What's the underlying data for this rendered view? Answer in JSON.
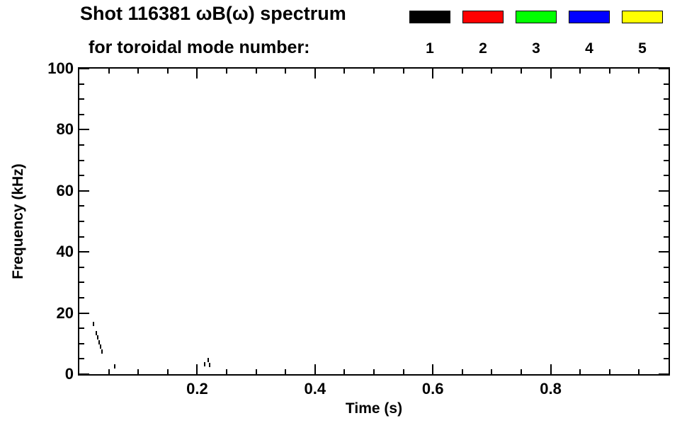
{
  "header": {
    "title": "Shot 116381 ωB(ω) spectrum",
    "subtitle": "for toroidal mode number:"
  },
  "chart_data": {
    "type": "scatter",
    "title": "Shot 116381 ωB(ω) spectrum",
    "subtitle": "for toroidal mode number:",
    "xlabel": "Time (s)",
    "ylabel": "Frequency (kHz)",
    "xlim": [
      0,
      1.0
    ],
    "ylim": [
      0,
      100
    ],
    "grid": false,
    "legend_position": "top-right",
    "x_ticks": [
      {
        "v": 0.2,
        "label": "0.2"
      },
      {
        "v": 0.4,
        "label": "0.4"
      },
      {
        "v": 0.6,
        "label": "0.6"
      },
      {
        "v": 0.8,
        "label": "0.8"
      }
    ],
    "y_ticks": [
      {
        "v": 0,
        "label": "0"
      },
      {
        "v": 20,
        "label": "20"
      },
      {
        "v": 40,
        "label": "40"
      },
      {
        "v": 60,
        "label": "60"
      },
      {
        "v": 80,
        "label": "80"
      },
      {
        "v": 100,
        "label": "100"
      }
    ],
    "x_minor_step": 0.05,
    "y_minor_step": 5,
    "series": [
      {
        "name": "1",
        "color": "#000000",
        "points": [
          [
            0.024,
            16.5
          ],
          [
            0.029,
            13.5
          ],
          [
            0.031,
            12.0
          ],
          [
            0.034,
            10.5
          ],
          [
            0.036,
            9.0
          ],
          [
            0.039,
            7.5
          ],
          [
            0.06,
            2.5
          ],
          [
            0.213,
            3.2
          ],
          [
            0.219,
            4.6
          ],
          [
            0.221,
            2.9
          ]
        ]
      },
      {
        "name": "2",
        "color": "#ff0000",
        "points": []
      },
      {
        "name": "3",
        "color": "#00ff00",
        "points": []
      },
      {
        "name": "4",
        "color": "#0000ff",
        "points": []
      },
      {
        "name": "5",
        "color": "#ffff00",
        "points": []
      }
    ]
  }
}
